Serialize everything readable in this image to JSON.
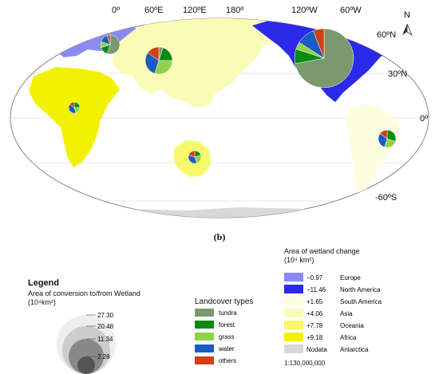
{
  "map": {
    "lon_labels": [
      "0º",
      "60ºE",
      "120ºE",
      "180º",
      "120ºW",
      "60ºW"
    ],
    "lat_labels": [
      "60ºN",
      "30ºN",
      "0º",
      "-60ºS"
    ],
    "north_label": "N",
    "caption": "(b)"
  },
  "regions": [
    {
      "name": "Europe",
      "change": "−0.97",
      "color": "#8a8af0"
    },
    {
      "name": "North America",
      "change": "−11.46",
      "color": "#2a2ae8"
    },
    {
      "name": "South America",
      "change": "+1.65",
      "color": "#fdfde0"
    },
    {
      "name": "Asia",
      "change": "+4.06",
      "color": "#fbfbb8"
    },
    {
      "name": "Oceania",
      "change": "+7.78",
      "color": "#f8f86a"
    },
    {
      "name": "Africa",
      "change": "+9.18",
      "color": "#f2f200"
    },
    {
      "name": "Antarctica",
      "change": "Nodata",
      "color": "#d8d8d8"
    }
  ],
  "legend": {
    "title": "Legend",
    "conversion_title": "Area of conversion to/from Wetland",
    "conversion_unit": "(10⁴km²)",
    "circle_values": [
      "27.30",
      "20.48",
      "11.34",
      "2.28"
    ],
    "landcover_title": "Landcover types",
    "landcover": [
      {
        "label": "tundra",
        "color": "#7a9a6e"
      },
      {
        "label": "forest",
        "color": "#0a8a12"
      },
      {
        "label": "grass",
        "color": "#8fd24a"
      },
      {
        "label": "water",
        "color": "#1c5cc0"
      },
      {
        "label": "others",
        "color": "#d04010"
      }
    ],
    "wetland_title": "Area of wetland change",
    "wetland_unit": "(10⁴ km²)",
    "scale": "1:130,000,000"
  }
}
